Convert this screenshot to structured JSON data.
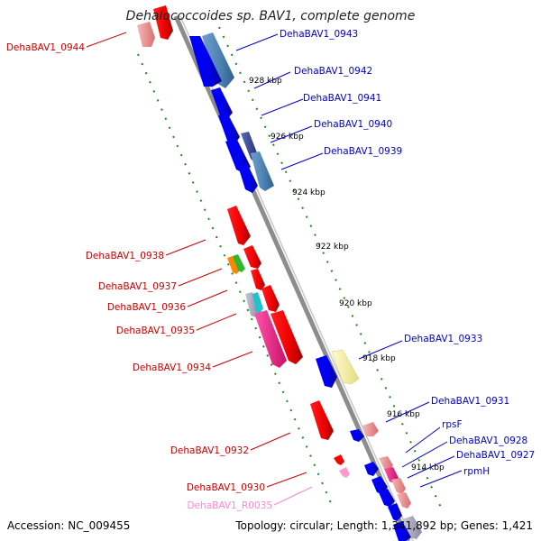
{
  "title": "Dehalococcoides sp. BAV1, complete genome",
  "footer": {
    "accession": "Accession: NC_009455",
    "topology": "Topology: circular; Length: 1,341,892 bp; Genes: 1,421"
  },
  "scale_labels": [
    "928 kbp",
    "926 kbp",
    "924 kbp",
    "922 kbp",
    "920 kbp",
    "918 kbp",
    "916 kbp",
    "914 kbp"
  ],
  "genes_right": [
    {
      "label": "DehaBAV1_0943",
      "color": "#0000cc"
    },
    {
      "label": "DehaBAV1_0942",
      "color": "#0000cc"
    },
    {
      "label": "DehaBAV1_0941",
      "color": "#0000cc"
    },
    {
      "label": "DehaBAV1_0940",
      "color": "#0000cc"
    },
    {
      "label": "DehaBAV1_0939",
      "color": "#0000cc"
    },
    {
      "label": "DehaBAV1_0933",
      "color": "#0000cc"
    },
    {
      "label": "DehaBAV1_0931",
      "color": "#0000cc"
    },
    {
      "label": "rpsF",
      "color": "#0000cc"
    },
    {
      "label": "DehaBAV1_0928",
      "color": "#0000cc"
    },
    {
      "label": "DehaBAV1_0927",
      "color": "#0000cc"
    },
    {
      "label": "rpmH",
      "color": "#0000cc"
    }
  ],
  "genes_left": [
    {
      "label": "DehaBAV1_0944",
      "color": "#cc0000"
    },
    {
      "label": "DehaBAV1_0938",
      "color": "#cc0000"
    },
    {
      "label": "DehaBAV1_0937",
      "color": "#cc0000"
    },
    {
      "label": "DehaBAV1_0936",
      "color": "#cc0000"
    },
    {
      "label": "DehaBAV1_0935",
      "color": "#cc0000"
    },
    {
      "label": "DehaBAV1_0934",
      "color": "#cc0000"
    },
    {
      "label": "DehaBAV1_0932",
      "color": "#cc0000"
    },
    {
      "label": "DehaBAV1_0930",
      "color": "#cc0000"
    },
    {
      "label": "DehaBAV1_R0035",
      "color": "#ff88cc"
    }
  ]
}
